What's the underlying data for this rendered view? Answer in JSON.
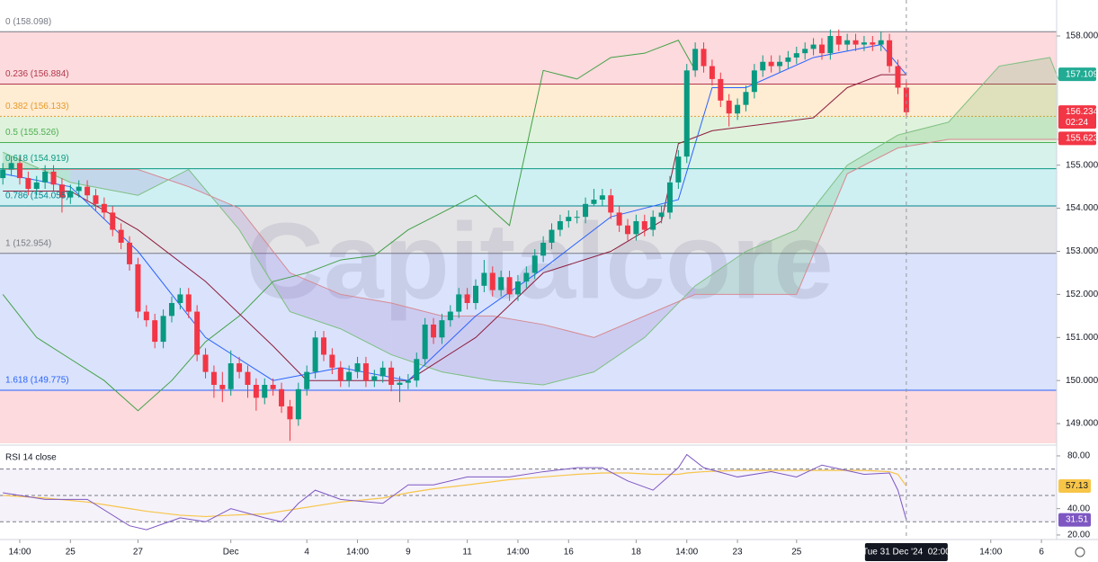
{
  "chart_data": {
    "type": "candlestick",
    "watermark": "Capitalcore",
    "xlim": [
      -0.34,
      124.8
    ],
    "xticks": [
      {
        "value": 2,
        "label": "14:00"
      },
      {
        "value": 8,
        "label": "25"
      },
      {
        "value": 16,
        "label": "27"
      },
      {
        "value": 27,
        "label": "Dec"
      },
      {
        "value": 36,
        "label": "4"
      },
      {
        "value": 42,
        "label": "14:00"
      },
      {
        "value": 48,
        "label": "9"
      },
      {
        "value": 55,
        "label": "11"
      },
      {
        "value": 61,
        "label": "14:00"
      },
      {
        "value": 67,
        "label": "16"
      },
      {
        "value": 75,
        "label": "18"
      },
      {
        "value": 81,
        "label": "14:00"
      },
      {
        "value": 87,
        "label": "23"
      },
      {
        "value": 94,
        "label": "25"
      },
      {
        "value": 117,
        "label": "14:00"
      },
      {
        "value": 123,
        "label": "6"
      }
    ],
    "crosshair": {
      "value": 107,
      "label": "Tue 31 Dec '24  02:00"
    },
    "ylim": [
      148.543,
      158.835
    ],
    "yticks": [
      {
        "value": 158,
        "label": "158.000"
      },
      {
        "value": 155,
        "label": "155.000"
      },
      {
        "value": 154,
        "label": "154.000"
      },
      {
        "value": 153,
        "label": "153.000"
      },
      {
        "value": 152,
        "label": "152.000"
      },
      {
        "value": 151,
        "label": "151.000"
      },
      {
        "value": 150,
        "label": "150.000"
      },
      {
        "value": 149,
        "label": "149.000"
      }
    ],
    "up_color": "#089981",
    "down_color": "#f23645",
    "open": [
      154.7,
      154.9,
      155.05,
      154.7,
      154.45,
      154.6,
      154.85,
      154.55,
      154.25,
      154.4,
      154.5,
      154.3,
      154.1,
      153.9,
      153.5,
      153.2,
      152.7,
      151.6,
      151.4,
      150.9,
      151.5,
      151.8,
      152.0,
      151.6,
      150.6,
      150.2,
      149.9,
      149.8,
      150.4,
      150.2,
      149.9,
      149.6,
      149.9,
      149.8,
      149.4,
      149.1,
      149.8,
      150.2,
      151.0,
      150.6,
      150.3,
      150.0,
      150.2,
      150.4,
      150.0,
      150.1,
      150.3,
      149.9,
      149.95,
      150.0,
      150.5,
      151.3,
      151.0,
      151.4,
      151.6,
      152.0,
      151.8,
      152.2,
      152.5,
      152.1,
      152.4,
      152.0,
      152.3,
      152.5,
      152.9,
      153.2,
      153.5,
      153.7,
      153.8,
      153.8,
      154.1,
      154.2,
      154.3,
      153.9,
      153.6,
      153.4,
      153.7,
      153.5,
      153.8,
      153.9,
      154.6,
      155.2,
      157.2,
      157.7,
      157.3,
      157.0,
      156.5,
      156.2,
      156.4,
      156.7,
      157.2,
      157.4,
      157.3,
      157.4,
      157.5,
      157.6,
      157.7,
      157.8,
      157.6,
      158.0,
      157.8,
      157.9,
      157.8,
      157.85,
      157.8,
      157.9,
      157.3,
      156.8
    ],
    "high": [
      155.05,
      155.2,
      155.2,
      154.85,
      154.75,
      155.0,
      155.0,
      154.7,
      154.55,
      154.65,
      154.65,
      154.45,
      154.25,
      154.05,
      153.65,
      153.35,
      152.85,
      151.75,
      151.55,
      151.65,
      151.95,
      152.15,
      152.15,
      151.75,
      150.75,
      150.35,
      150.2,
      150.7,
      150.55,
      150.35,
      150.05,
      150.05,
      150.05,
      149.95,
      149.55,
      149.95,
      150.35,
      151.15,
      151.15,
      150.75,
      150.45,
      150.35,
      150.55,
      150.55,
      150.25,
      150.45,
      150.45,
      150.1,
      150.15,
      150.65,
      151.45,
      151.45,
      151.55,
      151.75,
      152.15,
      152.15,
      152.35,
      152.8,
      152.65,
      152.55,
      152.55,
      152.45,
      152.65,
      153.05,
      153.35,
      153.65,
      153.85,
      153.95,
      153.95,
      154.25,
      154.45,
      154.45,
      154.45,
      154.05,
      153.75,
      153.85,
      153.85,
      153.95,
      154.05,
      154.75,
      155.35,
      157.35,
      157.85,
      157.85,
      157.45,
      157.15,
      156.65,
      156.55,
      156.85,
      157.35,
      157.55,
      157.55,
      157.55,
      157.65,
      157.75,
      157.85,
      157.95,
      157.95,
      158.15,
      158.15,
      158.05,
      158.05,
      158.0,
      158.0,
      158.1,
      158.05,
      157.45,
      156.95
    ],
    "low": [
      154.55,
      154.75,
      154.55,
      154.3,
      154.3,
      154.45,
      154.4,
      153.9,
      154.1,
      154.25,
      154.15,
      153.95,
      153.75,
      153.35,
      153.05,
      152.55,
      151.45,
      151.25,
      150.75,
      150.75,
      151.35,
      151.65,
      151.45,
      150.45,
      150.05,
      149.6,
      149.5,
      149.65,
      150.05,
      149.6,
      149.3,
      149.45,
      149.65,
      149.25,
      148.6,
      148.95,
      149.65,
      150.05,
      150.45,
      150.15,
      149.85,
      149.85,
      150.05,
      149.85,
      149.85,
      149.95,
      149.75,
      149.5,
      149.8,
      149.85,
      150.35,
      150.85,
      150.85,
      151.25,
      151.45,
      151.65,
      151.65,
      152.05,
      151.95,
      151.95,
      151.85,
      151.85,
      152.15,
      152.35,
      152.75,
      153.05,
      153.35,
      153.55,
      153.65,
      153.65,
      154.05,
      154.05,
      153.75,
      153.45,
      153.25,
      153.25,
      153.35,
      153.35,
      153.65,
      153.75,
      154.45,
      155.05,
      157.05,
      157.15,
      156.85,
      156.35,
      155.9,
      156.05,
      156.25,
      156.55,
      157.05,
      157.15,
      157.15,
      157.25,
      157.35,
      157.45,
      157.55,
      157.45,
      157.45,
      157.65,
      157.65,
      157.65,
      157.65,
      157.65,
      157.65,
      157.15,
      156.65,
      156.15
    ],
    "close": [
      154.9,
      155.05,
      154.7,
      154.45,
      154.6,
      154.85,
      154.55,
      154.25,
      154.4,
      154.5,
      154.3,
      154.1,
      153.9,
      153.5,
      153.2,
      152.7,
      151.6,
      151.4,
      150.9,
      151.5,
      151.8,
      152.0,
      151.6,
      150.6,
      150.2,
      149.9,
      149.8,
      150.4,
      150.2,
      149.9,
      149.6,
      149.9,
      149.8,
      149.4,
      149.1,
      149.8,
      150.2,
      151.0,
      150.6,
      150.3,
      150.0,
      150.2,
      150.4,
      150.0,
      150.1,
      150.3,
      149.9,
      149.95,
      150.0,
      150.5,
      151.3,
      151.0,
      151.4,
      151.6,
      152.0,
      151.8,
      152.2,
      152.5,
      152.1,
      152.4,
      152.0,
      152.3,
      152.5,
      152.9,
      153.2,
      153.5,
      153.7,
      153.8,
      153.8,
      154.1,
      154.2,
      154.3,
      153.9,
      153.6,
      153.4,
      153.7,
      153.5,
      153.8,
      153.9,
      154.6,
      155.2,
      157.2,
      157.7,
      157.3,
      157.0,
      156.5,
      156.2,
      156.4,
      156.7,
      157.2,
      157.4,
      157.3,
      157.4,
      157.5,
      157.6,
      157.7,
      157.8,
      157.6,
      158.0,
      157.8,
      157.9,
      157.8,
      157.85,
      157.8,
      157.9,
      157.3,
      156.8,
      156.23
    ],
    "fib": [
      {
        "value": 158.098,
        "label": "0 (158.098)",
        "color": "#787b86",
        "fill": "#fcdadd"
      },
      {
        "value": 156.884,
        "label": "0.236 (156.884)",
        "color": "#b2374c",
        "fill": "#feecd3"
      },
      {
        "value": 156.133,
        "label": "0.382 (156.133)",
        "color": "#e69a2a",
        "fill": "#dff2dc"
      },
      {
        "value": 155.526,
        "label": "0.5 (155.526)",
        "color": "#4caf50",
        "fill": "#d6f2ea"
      },
      {
        "value": 154.919,
        "label": "0.618 (154.919)",
        "color": "#089981",
        "fill": "#cff0f3"
      },
      {
        "value": 154.055,
        "label": "0.786 (154.055)",
        "color": "#00838f",
        "fill": "#e4e4e6"
      },
      {
        "value": 152.954,
        "label": "1 (152.954)",
        "color": "#787b86",
        "fill": "#dae3fb"
      },
      {
        "value": 149.775,
        "label": "1.618 (149.775)",
        "color": "#2962ff",
        "fill": "#fcdadd"
      }
    ],
    "ichimoku": {
      "tenkan": {
        "color": "#2962ff",
        "x": [
          0,
          8,
          16,
          24,
          32,
          40,
          48,
          56,
          64,
          72,
          80,
          84,
          88,
          96,
          104,
          107
        ],
        "values": [
          154.8,
          154.5,
          153.0,
          151.0,
          150.0,
          150.3,
          150.0,
          151.5,
          152.6,
          153.8,
          154.2,
          156.8,
          156.8,
          157.5,
          157.8,
          157.1
        ]
      },
      "kijun": {
        "color": "#8e1c3c",
        "x": [
          0,
          8,
          16,
          24,
          32,
          36,
          44,
          48,
          56,
          64,
          72,
          78,
          80,
          84,
          96,
          100,
          104,
          107
        ],
        "values": [
          154.4,
          154.4,
          153.5,
          152.3,
          150.8,
          150.0,
          150.0,
          150.0,
          151.0,
          152.5,
          153.0,
          153.7,
          155.5,
          155.8,
          156.1,
          156.8,
          157.1,
          157.1
        ]
      },
      "chikou": {
        "color": "#43a047",
        "x": [
          0,
          4,
          8,
          12,
          16,
          20,
          24,
          28,
          32,
          36,
          40,
          44,
          48,
          52,
          56,
          60,
          64,
          68,
          72,
          76,
          80,
          82
        ],
        "values": [
          152.0,
          151.0,
          150.5,
          150.0,
          149.3,
          150.0,
          150.9,
          151.5,
          152.3,
          152.5,
          152.8,
          152.9,
          153.5,
          153.9,
          154.3,
          153.6,
          157.2,
          157.0,
          157.5,
          157.6,
          157.9,
          157.2
        ]
      },
      "span_x": [
        0,
        8,
        16,
        22,
        28,
        34,
        40,
        46,
        52,
        58,
        64,
        70,
        76,
        82,
        88,
        94,
        100,
        106,
        112,
        118,
        124,
        125
      ],
      "span_a": [
        155.3,
        154.6,
        154.3,
        154.9,
        153.5,
        151.6,
        151.2,
        150.6,
        150.2,
        150.0,
        149.9,
        150.2,
        151.0,
        152.2,
        153.0,
        153.5,
        155.0,
        155.7,
        156.0,
        157.3,
        157.5,
        157.0
      ],
      "span_b": [
        154.9,
        154.9,
        154.9,
        154.5,
        154.0,
        152.5,
        152.0,
        151.8,
        151.5,
        151.5,
        151.3,
        151.0,
        151.5,
        152.0,
        152.0,
        152.0,
        154.8,
        155.4,
        155.6,
        155.6,
        155.6,
        155.6
      ],
      "bull_fill": "rgba(76,175,80,0.18)",
      "bear_fill": "rgba(149,117,205,0.2)",
      "span_a_color": "#7fbf82",
      "span_b_color": "#d78a93"
    },
    "price_labels": [
      {
        "value": 157.109,
        "color": "#22ab94"
      },
      {
        "value": 156.234,
        "color": "#f23645",
        "sub": "02:24"
      },
      {
        "value": 155.623,
        "color": "#f23645"
      }
    ],
    "rsi": {
      "title": "RSI 14 close",
      "ylim": [
        18.6,
        86.8
      ],
      "yticks": [
        {
          "value": 80,
          "label": "80.00"
        },
        {
          "value": 40,
          "label": "40.00"
        },
        {
          "value": 20,
          "label": "20.00"
        }
      ],
      "bands": [
        70,
        50,
        30
      ],
      "x": [
        0,
        5,
        10,
        15,
        17,
        21,
        24,
        27,
        31,
        33,
        35,
        37,
        40,
        45,
        48,
        51,
        55,
        60,
        64,
        68,
        71,
        74,
        77,
        80,
        81,
        83,
        87,
        91,
        94,
        97,
        102,
        105,
        106,
        107
      ],
      "values": [
        52,
        47,
        47,
        27,
        24,
        33,
        30,
        40,
        33,
        30,
        44,
        54,
        47,
        44,
        58,
        58,
        64,
        64,
        68,
        71,
        71,
        61,
        54,
        71,
        81,
        71,
        64,
        68,
        64,
        73,
        66,
        67,
        54,
        31.51
      ],
      "color": "#7e57c2",
      "ma": [
        50,
        48,
        45,
        40,
        38,
        35,
        34,
        35,
        36,
        38,
        40,
        42,
        45,
        48,
        52,
        55,
        58,
        62,
        64,
        66,
        67,
        67,
        66,
        66,
        67,
        68,
        69,
        69,
        69,
        69,
        69,
        68,
        66,
        57.13
      ],
      "ma_color": "#f7c548",
      "labels": [
        {
          "value": 57.13,
          "color": "#f7c548"
        },
        {
          "value": 31.51,
          "color": "#7e57c2"
        }
      ]
    }
  }
}
